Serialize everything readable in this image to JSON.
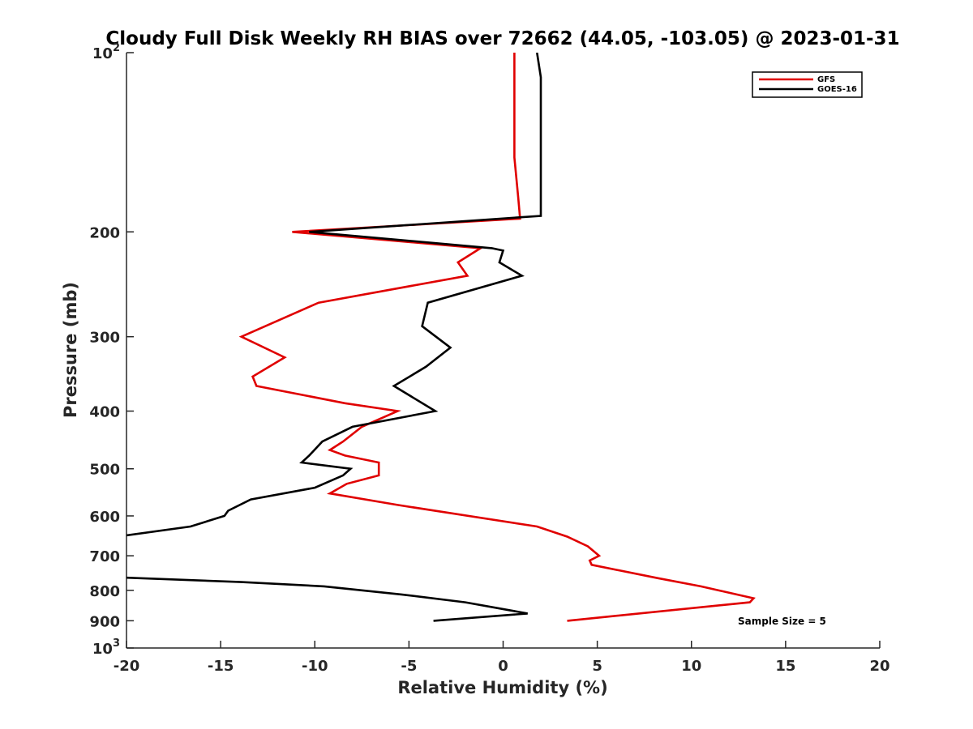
{
  "chart_data": {
    "type": "line",
    "title": "Cloudy Full Disk Weekly RH BIAS over 72662 (44.05, -103.05) @ 2023-01-31",
    "xlabel": "Relative Humidity (%)",
    "ylabel": "Pressure (mb)",
    "xlim": [
      -20,
      20
    ],
    "ylim": [
      100,
      1000
    ],
    "y_scale": "log",
    "y_reversed": true,
    "x_ticks": [
      -20,
      -15,
      -10,
      -5,
      0,
      5,
      10,
      15,
      20
    ],
    "x_tick_labels": [
      "-20",
      "-15",
      "-10",
      "-5",
      "0",
      "5",
      "10",
      "15",
      "20"
    ],
    "y_ticks": [
      100,
      200,
      300,
      400,
      500,
      600,
      700,
      800,
      900,
      1000
    ],
    "y_tick_labels": [
      "10^2",
      "200",
      "300",
      "400",
      "500",
      "600",
      "700",
      "800",
      "900",
      "10^3"
    ],
    "legend_position": "top-right",
    "grid": false,
    "series": [
      {
        "name": "GFS",
        "color": "#e00000",
        "points": [
          [
            0.6,
            100
          ],
          [
            0.6,
            110
          ],
          [
            0.6,
            125
          ],
          [
            0.6,
            150
          ],
          [
            0.8,
            175
          ],
          [
            0.9,
            190
          ],
          [
            -11.2,
            200
          ],
          [
            -1.2,
            213
          ],
          [
            -2.4,
            225
          ],
          [
            -1.9,
            237
          ],
          [
            -9.8,
            263
          ],
          [
            -13.9,
            300
          ],
          [
            -11.6,
            325
          ],
          [
            -13.3,
            350
          ],
          [
            -13.1,
            363
          ],
          [
            -8.4,
            388
          ],
          [
            -5.6,
            400
          ],
          [
            -7.5,
            425
          ],
          [
            -8.5,
            450
          ],
          [
            -9.2,
            465
          ],
          [
            -8.4,
            475
          ],
          [
            -6.6,
            488
          ],
          [
            -6.6,
            513
          ],
          [
            -8.3,
            530
          ],
          [
            -9.2,
            550
          ],
          [
            -5.6,
            575
          ],
          [
            1.8,
            625
          ],
          [
            3.4,
            650
          ],
          [
            4.5,
            675
          ],
          [
            5.1,
            700
          ],
          [
            4.6,
            713
          ],
          [
            4.7,
            725
          ],
          [
            8.2,
            763
          ],
          [
            10.5,
            788
          ],
          [
            13.3,
            825
          ],
          [
            13.1,
            838
          ],
          [
            3.4,
            900
          ]
        ]
      },
      {
        "name": "GOES-16",
        "color": "#000000",
        "points": [
          [
            1.8,
            100
          ],
          [
            2.0,
            110
          ],
          [
            2.0,
            125
          ],
          [
            2.0,
            150
          ],
          [
            2.0,
            175
          ],
          [
            2.0,
            188
          ],
          [
            -10.3,
            200
          ],
          [
            -0.6,
            213
          ],
          [
            0.0,
            215
          ],
          [
            -0.2,
            225
          ],
          [
            1.0,
            237
          ],
          [
            -4.0,
            263
          ],
          [
            -4.3,
            288
          ],
          [
            -2.8,
            313
          ],
          [
            -4.1,
            337
          ],
          [
            -5.8,
            363
          ],
          [
            -3.6,
            400
          ],
          [
            -8.0,
            425
          ],
          [
            -9.6,
            450
          ],
          [
            -10.3,
            475
          ],
          [
            -10.7,
            488
          ],
          [
            -8.1,
            500
          ],
          [
            -8.5,
            513
          ],
          [
            -10.0,
            538
          ],
          [
            -13.4,
            563
          ],
          [
            -14.6,
            588
          ],
          [
            -14.8,
            600
          ],
          [
            -16.6,
            625
          ],
          [
            -20.5,
            650
          ],
          [
            -20.5,
            762
          ],
          [
            -20.0,
            762
          ],
          [
            -13.9,
            775
          ],
          [
            -9.5,
            788
          ],
          [
            -5.4,
            813
          ],
          [
            -2.0,
            838
          ],
          [
            1.3,
            875
          ],
          [
            -3.7,
            900
          ]
        ]
      }
    ],
    "annotation": "Sample Size = 5"
  }
}
